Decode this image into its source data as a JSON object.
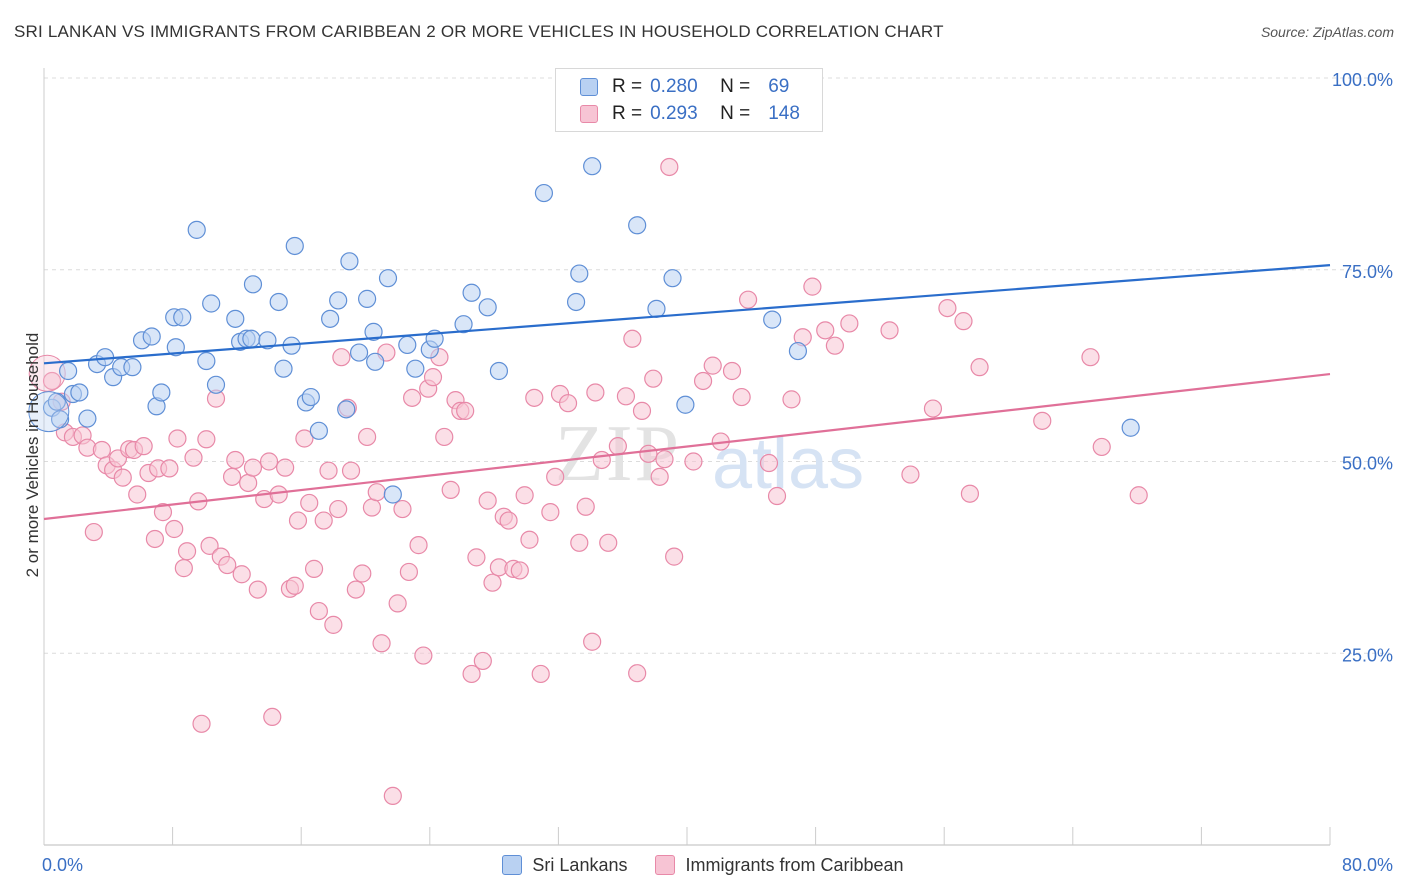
{
  "title": "SRI LANKAN VS IMMIGRANTS FROM CARIBBEAN 2 OR MORE VEHICLES IN HOUSEHOLD CORRELATION CHART",
  "source": "Source: ZipAtlas.com",
  "watermark": {
    "zip": "ZIP",
    "atlas": "atlas"
  },
  "colors": {
    "blue_fill": "#b9d1f2",
    "blue_stroke": "#5f8fd6",
    "blue_line": "#2a6dcc",
    "pink_fill": "#f7c4d4",
    "pink_stroke": "#e889a8",
    "pink_line": "#e07098",
    "axis_label": "#3a6fc4",
    "grid": "#dcdcdc"
  },
  "legend": {
    "rows": [
      {
        "r_label": "R =",
        "r_value": "0.280",
        "n_label": "N =",
        "n_value": "69",
        "series": "blue"
      },
      {
        "r_label": "R =",
        "r_value": "0.293",
        "n_label": "N =",
        "n_value": "148",
        "series": "pink"
      }
    ]
  },
  "bottom_legend": [
    {
      "label": "Sri Lankans",
      "series": "blue"
    },
    {
      "label": "Immigrants from Caribbean",
      "series": "pink"
    }
  ],
  "chart_data": {
    "type": "scatter",
    "title": "SRI LANKAN VS IMMIGRANTS FROM CARIBBEAN 2 OR MORE VEHICLES IN HOUSEHOLD CORRELATION CHART",
    "xlabel": "",
    "ylabel": "2 or more Vehicles in Household",
    "xlim": [
      0,
      80
    ],
    "ylim": [
      0,
      100
    ],
    "x_tick_labels": [
      "0.0%",
      "80.0%"
    ],
    "y_ticks": [
      25,
      50,
      75,
      100
    ],
    "y_tick_labels": [
      "25.0%",
      "50.0%",
      "75.0%",
      "100.0%"
    ],
    "grid": true,
    "legend_position": "top-center",
    "series": [
      {
        "name": "Sri Lankans",
        "color": "blue",
        "trend": {
          "x": [
            0,
            80
          ],
          "y": [
            62.8,
            75.6
          ]
        },
        "points": [
          [
            0.5,
            57.0
          ],
          [
            1.0,
            55.5
          ],
          [
            0.8,
            57.8
          ],
          [
            1.5,
            61.8
          ],
          [
            1.8,
            58.8
          ],
          [
            2.2,
            59.0
          ],
          [
            2.7,
            55.6
          ],
          [
            3.3,
            62.7
          ],
          [
            3.8,
            63.6
          ],
          [
            4.3,
            61.0
          ],
          [
            4.8,
            62.3
          ],
          [
            5.5,
            62.3
          ],
          [
            6.1,
            65.8
          ],
          [
            6.7,
            66.3
          ],
          [
            7.0,
            57.2
          ],
          [
            7.3,
            59.0
          ],
          [
            8.1,
            68.8
          ],
          [
            8.2,
            64.9
          ],
          [
            8.6,
            68.8
          ],
          [
            9.5,
            80.2
          ],
          [
            10.1,
            63.1
          ],
          [
            10.4,
            70.6
          ],
          [
            10.7,
            60.0
          ],
          [
            11.9,
            68.6
          ],
          [
            12.2,
            65.6
          ],
          [
            12.6,
            66.0
          ],
          [
            13.0,
            73.1
          ],
          [
            12.9,
            66.0
          ],
          [
            13.9,
            65.8
          ],
          [
            14.6,
            70.8
          ],
          [
            14.9,
            62.1
          ],
          [
            15.4,
            65.1
          ],
          [
            15.6,
            78.1
          ],
          [
            16.3,
            57.7
          ],
          [
            16.6,
            58.4
          ],
          [
            17.1,
            54.0
          ],
          [
            17.8,
            68.6
          ],
          [
            18.3,
            71.0
          ],
          [
            18.8,
            56.8
          ],
          [
            19.0,
            76.1
          ],
          [
            19.6,
            64.2
          ],
          [
            20.1,
            71.2
          ],
          [
            20.6,
            63.0
          ],
          [
            20.5,
            66.9
          ],
          [
            21.4,
            73.9
          ],
          [
            21.7,
            45.7
          ],
          [
            22.6,
            65.2
          ],
          [
            23.1,
            62.1
          ],
          [
            24.0,
            64.6
          ],
          [
            24.3,
            66.0
          ],
          [
            26.1,
            67.9
          ],
          [
            26.6,
            72.0
          ],
          [
            27.6,
            70.1
          ],
          [
            28.3,
            61.8
          ],
          [
            31.1,
            85.0
          ],
          [
            33.1,
            70.8
          ],
          [
            33.3,
            74.5
          ],
          [
            34.1,
            88.5
          ],
          [
            36.9,
            80.8
          ],
          [
            38.1,
            69.9
          ],
          [
            39.1,
            73.9
          ],
          [
            39.9,
            57.4
          ],
          [
            45.3,
            68.5
          ],
          [
            46.9,
            64.4
          ],
          [
            67.6,
            54.4
          ]
        ]
      },
      {
        "name": "Immigrants from Caribbean",
        "color": "pink",
        "trend": {
          "x": [
            0,
            80
          ],
          "y": [
            42.5,
            61.4
          ]
        },
        "points": [
          [
            0.5,
            60.5
          ],
          [
            1.1,
            57.8
          ],
          [
            1.3,
            53.8
          ],
          [
            1.8,
            53.2
          ],
          [
            2.4,
            53.4
          ],
          [
            2.7,
            51.8
          ],
          [
            3.1,
            40.8
          ],
          [
            3.6,
            51.5
          ],
          [
            3.9,
            49.5
          ],
          [
            4.3,
            48.9
          ],
          [
            4.6,
            50.4
          ],
          [
            4.9,
            47.9
          ],
          [
            5.3,
            51.6
          ],
          [
            5.6,
            51.5
          ],
          [
            5.8,
            45.7
          ],
          [
            6.2,
            52.0
          ],
          [
            6.5,
            48.5
          ],
          [
            6.9,
            39.9
          ],
          [
            7.1,
            49.1
          ],
          [
            7.4,
            43.4
          ],
          [
            7.8,
            49.1
          ],
          [
            8.1,
            41.2
          ],
          [
            8.3,
            53.0
          ],
          [
            8.7,
            36.1
          ],
          [
            8.9,
            38.3
          ],
          [
            9.3,
            50.5
          ],
          [
            9.6,
            44.8
          ],
          [
            9.8,
            15.8
          ],
          [
            10.1,
            52.9
          ],
          [
            10.3,
            39.0
          ],
          [
            10.7,
            58.2
          ],
          [
            11.0,
            37.6
          ],
          [
            11.4,
            36.5
          ],
          [
            11.7,
            48.0
          ],
          [
            11.9,
            50.2
          ],
          [
            12.3,
            35.3
          ],
          [
            12.7,
            47.2
          ],
          [
            13.0,
            49.2
          ],
          [
            13.3,
            33.3
          ],
          [
            13.7,
            45.1
          ],
          [
            14.0,
            50.0
          ],
          [
            14.2,
            16.7
          ],
          [
            14.6,
            45.7
          ],
          [
            15.0,
            49.2
          ],
          [
            15.3,
            33.4
          ],
          [
            15.6,
            33.8
          ],
          [
            15.8,
            42.3
          ],
          [
            16.2,
            53.0
          ],
          [
            16.5,
            44.6
          ],
          [
            16.8,
            36.0
          ],
          [
            17.1,
            30.5
          ],
          [
            17.4,
            42.3
          ],
          [
            17.7,
            48.8
          ],
          [
            18.0,
            28.7
          ],
          [
            18.3,
            43.8
          ],
          [
            18.5,
            63.6
          ],
          [
            18.9,
            57.0
          ],
          [
            19.1,
            48.8
          ],
          [
            19.4,
            33.3
          ],
          [
            19.8,
            35.4
          ],
          [
            20.1,
            53.2
          ],
          [
            20.4,
            44.0
          ],
          [
            20.7,
            46.0
          ],
          [
            21.0,
            26.3
          ],
          [
            21.3,
            64.2
          ],
          [
            21.7,
            6.4
          ],
          [
            22.0,
            31.5
          ],
          [
            22.3,
            43.8
          ],
          [
            22.7,
            35.6
          ],
          [
            22.9,
            58.3
          ],
          [
            23.3,
            39.1
          ],
          [
            23.6,
            24.7
          ],
          [
            23.9,
            59.5
          ],
          [
            24.2,
            61.0
          ],
          [
            24.6,
            63.6
          ],
          [
            24.9,
            53.2
          ],
          [
            25.3,
            46.3
          ],
          [
            25.6,
            58.0
          ],
          [
            25.9,
            56.6
          ],
          [
            26.2,
            56.6
          ],
          [
            26.6,
            22.3
          ],
          [
            26.9,
            37.5
          ],
          [
            27.3,
            24.0
          ],
          [
            27.6,
            44.9
          ],
          [
            27.9,
            34.2
          ],
          [
            28.3,
            36.2
          ],
          [
            28.6,
            42.8
          ],
          [
            28.9,
            42.3
          ],
          [
            29.2,
            36.0
          ],
          [
            29.6,
            35.8
          ],
          [
            29.9,
            45.6
          ],
          [
            30.2,
            39.8
          ],
          [
            30.5,
            58.3
          ],
          [
            30.9,
            22.3
          ],
          [
            31.5,
            43.4
          ],
          [
            31.8,
            48.0
          ],
          [
            32.1,
            58.8
          ],
          [
            32.6,
            57.6
          ],
          [
            33.3,
            39.4
          ],
          [
            33.7,
            44.1
          ],
          [
            34.1,
            26.5
          ],
          [
            34.3,
            59.0
          ],
          [
            34.7,
            50.2
          ],
          [
            35.1,
            39.4
          ],
          [
            35.7,
            52.0
          ],
          [
            36.2,
            58.5
          ],
          [
            36.6,
            66.0
          ],
          [
            36.9,
            22.4
          ],
          [
            37.2,
            56.6
          ],
          [
            37.6,
            51.0
          ],
          [
            37.9,
            60.8
          ],
          [
            38.3,
            48.0
          ],
          [
            38.6,
            50.3
          ],
          [
            38.9,
            88.4
          ],
          [
            39.2,
            37.6
          ],
          [
            40.4,
            50.0
          ],
          [
            41.0,
            60.5
          ],
          [
            41.6,
            62.5
          ],
          [
            42.1,
            52.6
          ],
          [
            42.8,
            61.8
          ],
          [
            43.4,
            58.4
          ],
          [
            43.8,
            71.1
          ],
          [
            45.1,
            49.8
          ],
          [
            45.6,
            45.5
          ],
          [
            46.5,
            58.1
          ],
          [
            47.2,
            66.2
          ],
          [
            47.8,
            72.8
          ],
          [
            48.6,
            67.1
          ],
          [
            49.2,
            65.1
          ],
          [
            50.1,
            68.0
          ],
          [
            52.6,
            67.1
          ],
          [
            53.9,
            48.3
          ],
          [
            55.3,
            56.9
          ],
          [
            56.2,
            70.0
          ],
          [
            57.2,
            68.3
          ],
          [
            57.6,
            45.8
          ],
          [
            58.2,
            62.3
          ],
          [
            62.1,
            55.3
          ],
          [
            65.1,
            63.6
          ],
          [
            65.8,
            51.9
          ],
          [
            68.1,
            45.6
          ]
        ]
      }
    ]
  }
}
